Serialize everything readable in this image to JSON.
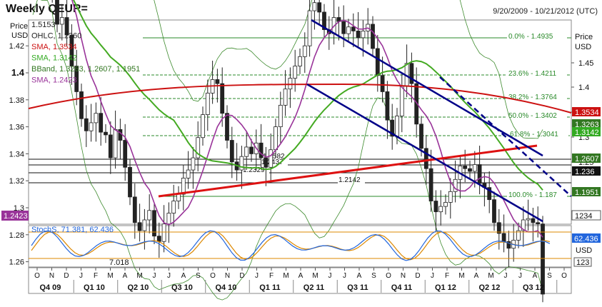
{
  "header": {
    "title": "Weekly QEUR=",
    "date_range": "9/20/2009 - 10/21/2012 (UTC)"
  },
  "chart_data": {
    "type": "candlestick",
    "ylabel": "Price USD",
    "price_axis": {
      "left_ticks": [
        "1.42",
        "1.4",
        "1.38",
        "1.36",
        "1.34",
        "1.32",
        "1.3",
        "1.28",
        "1.26"
      ],
      "right_ticks": [
        "1.45",
        "1.4",
        "1.35",
        "1.3",
        "1.25"
      ],
      "ylim": [
        1.245,
        1.52
      ]
    },
    "time_axis": {
      "months": [
        "O",
        "N",
        "D",
        "J",
        "F",
        "M",
        "A",
        "M",
        "J",
        "J",
        "A",
        "S",
        "O",
        "N",
        "D",
        "J",
        "F",
        "M",
        "A",
        "M",
        "J",
        "J",
        "A",
        "S",
        "O",
        "N",
        "D",
        "J",
        "F",
        "M",
        "A",
        "M",
        "J",
        "J",
        "A",
        "S",
        "O"
      ],
      "quarters": [
        "Q4 09",
        "Q1 10",
        "Q2 10",
        "Q3 10",
        "Q4 10",
        "Q1 11",
        "Q2 11",
        "Q3 11",
        "Q4 11",
        "Q1 12",
        "Q2 12",
        "Q3 12"
      ]
    },
    "legend": [
      {
        "text": "1.5153",
        "color": "#222222"
      },
      {
        "text": "OHLC, 1.2360",
        "color": "#222222"
      },
      {
        "text": "SMA, 1.3534",
        "color": "#cc1111"
      },
      {
        "text": "SMA, 1.3142",
        "color": "#33aa22"
      },
      {
        "text": "BBand, 1.3263, 1.2607, 1.1951",
        "color": "#337722"
      },
      {
        "text": "SMA, 1.2423",
        "color": "#993399"
      }
    ],
    "fibonacci": [
      {
        "label": "0.0% - 1.4935",
        "value": 1.4935
      },
      {
        "label": "23.6% - 1.4211",
        "value": 1.4211
      },
      {
        "label": "38.2% - 1.3764",
        "value": 1.3764
      },
      {
        "label": "50.0% - 1.3402",
        "value": 1.3402
      },
      {
        "label": "61.8% - 1.3041",
        "value": 1.3041
      },
      {
        "label": "100.0% - 1.187",
        "value": 1.187
      }
    ],
    "support_levels": [
      {
        "label": "1.2582",
        "value": 1.2582
      },
      {
        "label": "1.2437",
        "value": 1.2437
      },
      {
        "label": "1.2329",
        "value": 1.2329
      },
      {
        "label": "1.2142",
        "value": 1.2142
      }
    ],
    "right_badges": [
      {
        "text": "1.3534",
        "color": "#cc1111"
      },
      {
        "text": "1.3263",
        "color": "#337722"
      },
      {
        "text": "1.3142",
        "color": "#33aa22"
      },
      {
        "text": "1.2607",
        "color": "#337722"
      },
      {
        "text": "1.236",
        "color": "#111111"
      },
      {
        "text": "1.1951",
        "color": "#337722"
      },
      {
        "text": "1234",
        "color": "#ffffff"
      }
    ],
    "left_badge": {
      "text": "1.2423",
      "color": "#993399"
    },
    "stochastic": {
      "legend": "StochS, 71.381, 62.436",
      "low_label": "7.018",
      "badge": "62.436",
      "axis_label": "USD",
      "axis_value": "123"
    },
    "close_series": [
      1.471,
      1.488,
      1.501,
      1.478,
      1.462,
      1.436,
      1.441,
      1.428,
      1.405,
      1.386,
      1.366,
      1.357,
      1.363,
      1.37,
      1.356,
      1.354,
      1.337,
      1.358,
      1.35,
      1.33,
      1.308,
      1.289,
      1.283,
      1.291,
      1.298,
      1.279,
      1.275,
      1.288,
      1.296,
      1.305,
      1.31,
      1.322,
      1.328,
      1.337,
      1.352,
      1.369,
      1.385,
      1.395,
      1.392,
      1.37,
      1.35,
      1.334,
      1.328,
      1.338,
      1.345,
      1.34,
      1.348,
      1.337,
      1.33,
      1.343,
      1.36,
      1.376,
      1.388,
      1.396,
      1.405,
      1.412,
      1.42,
      1.446,
      1.452,
      1.445,
      1.432,
      1.429,
      1.441,
      1.438,
      1.429,
      1.434,
      1.431,
      1.426,
      1.431,
      1.436,
      1.418,
      1.398,
      1.386,
      1.365,
      1.353,
      1.368,
      1.39,
      1.407,
      1.392,
      1.362,
      1.344,
      1.329,
      1.305,
      1.297,
      1.301,
      1.304,
      1.312,
      1.321,
      1.331,
      1.329,
      1.327,
      1.332,
      1.318,
      1.315,
      1.306,
      1.289,
      1.281,
      1.275,
      1.27,
      1.276,
      1.283,
      1.291,
      1.292,
      1.289,
      1.288,
      1.236
    ]
  }
}
